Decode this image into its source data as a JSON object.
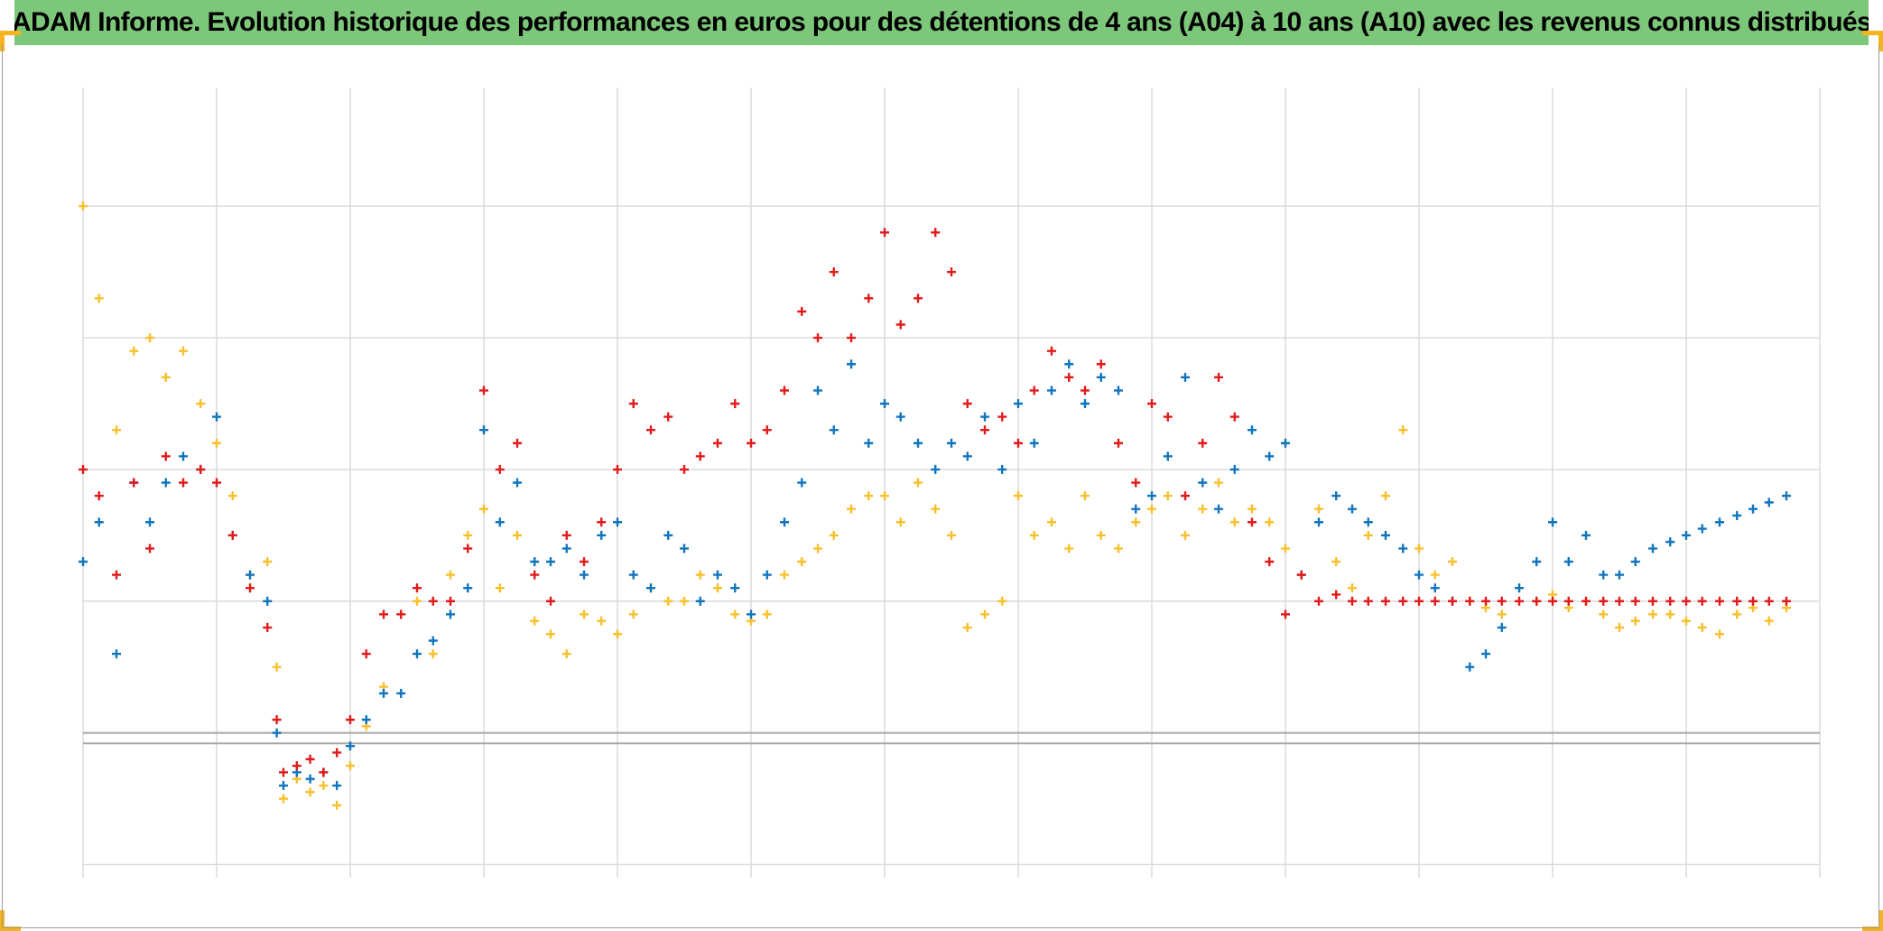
{
  "page": {
    "title": "ADAM Informe. Evolution historique des performances en euros pour des détentions de 4 ans (A04) à 10 ans (A10) avec les revenus connus distribués"
  },
  "colors": {
    "title_background": "#7DC77A",
    "accent_corner": "#F5B41C",
    "gridline": "#D9D9D9",
    "baseline": "#A6A6A6"
  },
  "icons": {
    "marker_shape": "plus-marker-icon"
  },
  "chart_data": {
    "type": "scatter",
    "title": "ADAM Informe. Evolution historique des performances en euros pour des détentions de 4 ans (A04) à 10 ans (A10) avec les revenus connus distribués",
    "xlabel": "",
    "ylabel": "",
    "x_tick_labels": [],
    "y_tick_labels": [],
    "xlim": [
      0,
      13
    ],
    "ylim": [
      -1.1,
      4.9
    ],
    "x_gridlines": [
      0,
      1,
      2,
      3,
      4,
      5,
      6,
      7,
      8,
      9,
      10,
      11,
      12,
      13
    ],
    "y_gridlines": [
      -1,
      0,
      1,
      2,
      3,
      4,
      5
    ],
    "reference_lines": [
      -0.08
    ],
    "grid": true,
    "legend": "none",
    "marker": "plus",
    "series": [
      {
        "name": "yellow",
        "color": "#F9C02D",
        "x": [
          0.0,
          0.12,
          0.25,
          0.38,
          0.5,
          0.62,
          0.75,
          0.88,
          1.0,
          1.12,
          1.25,
          1.38,
          1.45,
          1.5,
          1.6,
          1.7,
          1.8,
          1.9,
          2.0,
          2.12,
          2.25,
          2.38,
          2.5,
          2.62,
          2.75,
          2.88,
          3.0,
          3.12,
          3.25,
          3.38,
          3.5,
          3.62,
          3.75,
          3.88,
          4.0,
          4.12,
          4.25,
          4.38,
          4.5,
          4.62,
          4.75,
          4.88,
          5.0,
          5.12,
          5.25,
          5.38,
          5.5,
          5.62,
          5.75,
          5.88,
          6.0,
          6.12,
          6.25,
          6.38,
          6.5,
          6.62,
          6.75,
          6.88,
          7.0,
          7.12,
          7.25,
          7.38,
          7.5,
          7.62,
          7.75,
          7.88,
          8.0,
          8.12,
          8.25,
          8.38,
          8.5,
          8.62,
          8.75,
          8.88,
          9.0,
          9.12,
          9.25,
          9.38,
          9.5,
          9.62,
          9.75,
          9.88,
          10.0,
          10.12,
          10.25,
          10.38,
          10.5,
          10.62,
          10.75,
          10.88,
          11.0,
          11.12,
          11.25,
          11.38,
          11.5,
          11.62,
          11.75,
          11.88,
          12.0,
          12.12,
          12.25,
          12.38,
          12.5,
          12.62,
          12.75
        ],
        "y": [
          4.0,
          3.3,
          2.3,
          2.9,
          3.0,
          2.7,
          2.9,
          2.5,
          2.2,
          1.8,
          1.2,
          1.3,
          0.5,
          -0.5,
          -0.35,
          -0.45,
          -0.4,
          -0.55,
          -0.25,
          0.05,
          0.35,
          0.9,
          1.0,
          0.6,
          1.2,
          1.5,
          1.7,
          1.1,
          1.5,
          0.85,
          0.75,
          0.6,
          0.9,
          0.85,
          0.75,
          0.9,
          1.1,
          1.0,
          1.0,
          1.2,
          1.1,
          0.9,
          0.85,
          0.9,
          1.2,
          1.3,
          1.4,
          1.5,
          1.7,
          1.8,
          1.8,
          1.6,
          1.9,
          1.7,
          1.5,
          0.8,
          0.9,
          1.0,
          1.8,
          1.5,
          1.6,
          1.4,
          1.8,
          1.5,
          1.4,
          1.6,
          1.7,
          1.8,
          1.5,
          1.7,
          1.9,
          1.6,
          1.7,
          1.6,
          1.4,
          1.2,
          1.7,
          1.3,
          1.1,
          1.5,
          1.8,
          2.3,
          1.4,
          1.2,
          1.3,
          1.0,
          0.95,
          0.9,
          1.1,
          1.0,
          1.05,
          0.95,
          1.0,
          0.9,
          0.8,
          0.85,
          0.9,
          0.9,
          0.85,
          0.8,
          0.75,
          0.9,
          0.95,
          0.85,
          0.95
        ]
      },
      {
        "name": "blue",
        "color": "#1175BE",
        "x": [
          0.0,
          0.12,
          0.25,
          0.38,
          0.5,
          0.62,
          0.75,
          0.88,
          1.0,
          1.12,
          1.25,
          1.38,
          1.45,
          1.5,
          1.6,
          1.7,
          1.8,
          1.9,
          2.0,
          2.12,
          2.25,
          2.38,
          2.5,
          2.62,
          2.75,
          2.88,
          3.0,
          3.12,
          3.25,
          3.38,
          3.5,
          3.62,
          3.75,
          3.88,
          4.0,
          4.12,
          4.25,
          4.38,
          4.5,
          4.62,
          4.75,
          4.88,
          5.0,
          5.12,
          5.25,
          5.38,
          5.5,
          5.62,
          5.75,
          5.88,
          6.0,
          6.12,
          6.25,
          6.38,
          6.5,
          6.62,
          6.75,
          6.88,
          7.0,
          7.12,
          7.25,
          7.38,
          7.5,
          7.62,
          7.75,
          7.88,
          8.0,
          8.12,
          8.25,
          8.38,
          8.5,
          8.62,
          8.75,
          8.88,
          9.0,
          9.12,
          9.25,
          9.38,
          9.5,
          9.62,
          9.75,
          9.88,
          10.0,
          10.12,
          10.25,
          10.38,
          10.5,
          10.62,
          10.75,
          10.88,
          11.0,
          11.12,
          11.25,
          11.38,
          11.5,
          11.62,
          11.75,
          11.88,
          12.0,
          12.12,
          12.25,
          12.38,
          12.5,
          12.62,
          12.75
        ],
        "y": [
          1.3,
          1.6,
          0.6,
          1.9,
          1.6,
          1.9,
          2.1,
          2.0,
          2.4,
          1.5,
          1.2,
          1.0,
          0.0,
          -0.4,
          -0.3,
          -0.35,
          -0.3,
          -0.4,
          -0.1,
          0.1,
          0.3,
          0.3,
          0.6,
          0.7,
          0.9,
          1.1,
          2.3,
          1.6,
          1.9,
          1.3,
          1.3,
          1.4,
          1.2,
          1.5,
          1.6,
          1.2,
          1.1,
          1.5,
          1.4,
          1.0,
          1.2,
          1.1,
          0.9,
          1.2,
          1.6,
          1.9,
          2.6,
          2.3,
          2.8,
          2.2,
          2.5,
          2.4,
          2.2,
          2.0,
          2.2,
          2.1,
          2.4,
          2.0,
          2.5,
          2.2,
          2.6,
          2.8,
          2.5,
          2.7,
          2.6,
          1.7,
          1.8,
          2.1,
          2.7,
          1.9,
          1.7,
          2.0,
          2.3,
          2.1,
          2.2,
          1.2,
          1.6,
          1.8,
          1.7,
          1.6,
          1.5,
          1.4,
          1.2,
          1.1,
          1.0,
          0.5,
          0.6,
          0.8,
          1.1,
          1.3,
          1.6,
          1.3,
          1.5,
          1.2,
          1.2,
          1.3,
          1.4,
          1.45,
          1.5,
          1.55,
          1.6,
          1.65,
          1.7,
          1.75,
          1.8
        ]
      },
      {
        "name": "red",
        "color": "#E11B1B",
        "x": [
          0.0,
          0.12,
          0.25,
          0.38,
          0.5,
          0.62,
          0.75,
          0.88,
          1.0,
          1.12,
          1.25,
          1.38,
          1.45,
          1.5,
          1.6,
          1.7,
          1.8,
          1.9,
          2.0,
          2.12,
          2.25,
          2.38,
          2.5,
          2.62,
          2.75,
          2.88,
          3.0,
          3.12,
          3.25,
          3.38,
          3.5,
          3.62,
          3.75,
          3.88,
          4.0,
          4.12,
          4.25,
          4.38,
          4.5,
          4.62,
          4.75,
          4.88,
          5.0,
          5.12,
          5.25,
          5.38,
          5.5,
          5.62,
          5.75,
          5.88,
          6.0,
          6.12,
          6.25,
          6.38,
          6.5,
          6.62,
          6.75,
          6.88,
          7.0,
          7.12,
          7.25,
          7.38,
          7.5,
          7.62,
          7.75,
          7.88,
          8.0,
          8.12,
          8.25,
          8.38,
          8.5,
          8.62,
          8.75,
          8.88,
          9.0,
          9.12,
          9.25,
          9.38,
          9.5,
          9.62,
          9.75,
          9.88,
          10.0,
          10.12,
          10.25,
          10.38,
          10.5,
          10.62,
          10.75,
          10.88,
          11.0,
          11.12,
          11.25,
          11.38,
          11.5,
          11.62,
          11.75,
          11.88,
          12.0,
          12.12,
          12.25,
          12.38,
          12.5,
          12.62,
          12.75
        ],
        "y": [
          2.0,
          1.8,
          1.2,
          1.9,
          1.4,
          2.1,
          1.9,
          2.0,
          1.9,
          1.5,
          1.1,
          0.8,
          0.1,
          -0.3,
          -0.25,
          -0.2,
          -0.3,
          -0.15,
          0.1,
          0.6,
          0.9,
          0.9,
          1.1,
          1.0,
          1.0,
          1.4,
          2.6,
          2.0,
          2.2,
          1.2,
          1.0,
          1.5,
          1.3,
          1.6,
          2.0,
          2.5,
          2.3,
          2.4,
          2.0,
          2.1,
          2.2,
          2.5,
          2.2,
          2.3,
          2.6,
          3.2,
          3.0,
          3.5,
          3.0,
          3.3,
          3.8,
          3.1,
          3.3,
          3.8,
          3.5,
          2.5,
          2.3,
          2.4,
          2.2,
          2.6,
          2.9,
          2.7,
          2.6,
          2.8,
          2.2,
          1.9,
          2.5,
          2.4,
          1.8,
          2.2,
          2.7,
          2.4,
          1.6,
          1.3,
          0.9,
          1.2,
          1.0,
          1.05,
          1.0,
          1.0,
          1.0,
          1.0,
          1.0,
          1.0,
          1.0,
          1.0,
          1.0,
          1.0,
          1.0,
          1.0,
          1.0,
          1.0,
          1.0,
          1.0,
          1.0,
          1.0,
          1.0,
          1.0,
          1.0,
          1.0,
          1.0,
          1.0,
          1.0,
          1.0,
          1.0
        ]
      }
    ]
  }
}
